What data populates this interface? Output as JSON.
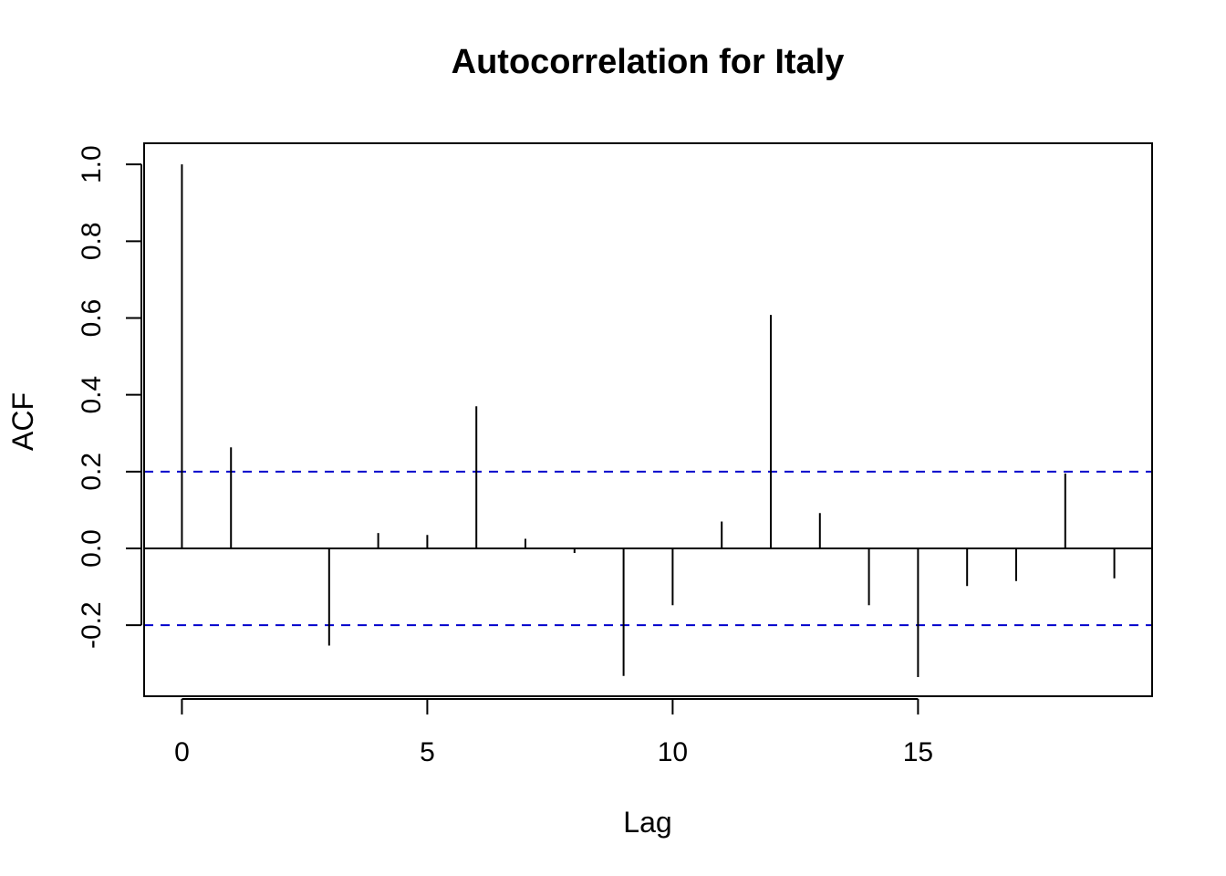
{
  "chart_data": {
    "type": "bar",
    "title": "Autocorrelation for Italy",
    "xlabel": "Lag",
    "ylabel": "ACF",
    "x": [
      0,
      1,
      2,
      3,
      4,
      5,
      6,
      7,
      8,
      9,
      10,
      11,
      12,
      13,
      14,
      15,
      16,
      17,
      18,
      19
    ],
    "values": [
      1.0,
      0.263,
      -0.002,
      -0.253,
      0.04,
      0.035,
      0.37,
      0.025,
      -0.012,
      -0.332,
      -0.148,
      0.07,
      0.608,
      0.092,
      -0.148,
      -0.335,
      -0.098,
      -0.085,
      0.195,
      -0.078
    ],
    "confidence_bounds": [
      0.2,
      -0.2
    ],
    "xlim": [
      -0.77,
      19.77
    ],
    "ylim": [
      -0.385,
      1.055
    ],
    "xticks": [
      "0",
      "5",
      "10",
      "15"
    ],
    "yticks": [
      "-0.2",
      "0.0",
      "0.2",
      "0.4",
      "0.6",
      "0.8",
      "1.0"
    ],
    "grid": false,
    "colors": {
      "bars": "#000000",
      "zero_line": "#000000",
      "confidence": "#0000cc",
      "frame": "#000000"
    }
  }
}
